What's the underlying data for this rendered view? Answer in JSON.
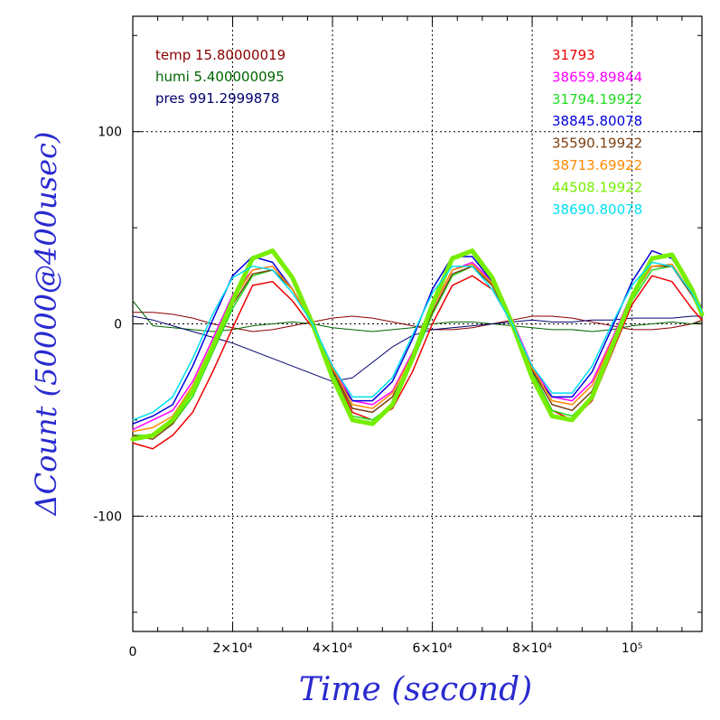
{
  "chart_data": {
    "type": "line",
    "xlabel": "Time (second)",
    "ylabel": "ΔCount (50000@400usec)",
    "xlim": [
      0,
      114000
    ],
    "ylim": [
      -160,
      160
    ],
    "grid": true,
    "x_ticks": [
      {
        "value": 0,
        "label": "0"
      },
      {
        "value": 20000,
        "label": "2×10⁴"
      },
      {
        "value": 40000,
        "label": "4×10⁴"
      },
      {
        "value": 60000,
        "label": "6×10⁴"
      },
      {
        "value": 80000,
        "label": "8×10⁴"
      },
      {
        "value": 100000,
        "label": "10⁵"
      }
    ],
    "y_ticks": [
      {
        "value": 100,
        "label": "100"
      },
      {
        "value": 0,
        "label": "0"
      },
      {
        "value": -100,
        "label": "-100"
      }
    ],
    "env_legend": [
      {
        "text": "temp 15.80000019",
        "color": "#8b0000"
      },
      {
        "text": "humi 5.400000095",
        "color": "#006400"
      },
      {
        "text": "pres 991.2999878",
        "color": "#00006e"
      }
    ],
    "series": [
      {
        "name": "31793",
        "color": "#ee0000",
        "width": 1.5,
        "amp": 24,
        "phase": 4200,
        "offset": -20,
        "start": -62,
        "x": [
          0,
          4000,
          8000,
          12000,
          16000,
          20000,
          24000,
          28000,
          32000,
          36000,
          40000,
          44000,
          48000,
          52000,
          56000,
          60000,
          64000,
          68000,
          72000,
          76000,
          80000,
          84000,
          88000,
          92000,
          96000,
          100000,
          104000,
          108000,
          112000,
          114000
        ],
        "y": [
          -62,
          -65,
          -58,
          -46,
          -25,
          -2,
          20,
          22,
          12,
          -2,
          -25,
          -46,
          -50,
          -44,
          -25,
          0,
          20,
          25,
          18,
          0,
          -25,
          -45,
          -50,
          -40,
          -15,
          10,
          25,
          22,
          8,
          2
        ]
      },
      {
        "name": "38659.89844",
        "color": "#ff00ff",
        "width": 1.5,
        "x": [
          0,
          4000,
          8000,
          12000,
          16000,
          20000,
          24000,
          28000,
          32000,
          36000,
          40000,
          44000,
          48000,
          52000,
          56000,
          60000,
          64000,
          68000,
          72000,
          76000,
          80000,
          84000,
          88000,
          92000,
          96000,
          100000,
          104000,
          108000,
          112000,
          114000
        ],
        "y": [
          -55,
          -50,
          -45,
          -30,
          -8,
          15,
          28,
          30,
          18,
          0,
          -22,
          -40,
          -42,
          -35,
          -15,
          8,
          28,
          32,
          22,
          2,
          -22,
          -38,
          -40,
          -30,
          -8,
          16,
          30,
          30,
          15,
          5
        ]
      },
      {
        "name": "31794.19922",
        "color": "#22dd22",
        "width": 1.5,
        "x": [
          0,
          4000,
          8000,
          12000,
          16000,
          20000,
          24000,
          28000,
          32000,
          36000,
          40000,
          44000,
          48000,
          52000,
          56000,
          60000,
          64000,
          68000,
          72000,
          76000,
          80000,
          84000,
          88000,
          92000,
          96000,
          100000,
          104000,
          108000,
          112000,
          114000
        ],
        "y": [
          -58,
          -58,
          -52,
          -38,
          -15,
          8,
          25,
          28,
          18,
          0,
          -25,
          -48,
          -50,
          -42,
          -20,
          5,
          25,
          30,
          20,
          0,
          -25,
          -45,
          -48,
          -38,
          -12,
          12,
          28,
          30,
          15,
          5
        ]
      },
      {
        "name": "38845.80078",
        "color": "#0000dd",
        "width": 1.5,
        "x": [
          0,
          4000,
          8000,
          12000,
          16000,
          20000,
          24000,
          28000,
          32000,
          36000,
          40000,
          44000,
          48000,
          52000,
          56000,
          60000,
          64000,
          68000,
          72000,
          76000,
          80000,
          84000,
          88000,
          92000,
          96000,
          100000,
          104000,
          108000,
          112000,
          114000
        ],
        "y": [
          -52,
          -48,
          -42,
          -22,
          2,
          25,
          35,
          32,
          18,
          0,
          -25,
          -40,
          -40,
          -30,
          -8,
          18,
          35,
          35,
          22,
          0,
          -25,
          -38,
          -38,
          -25,
          -2,
          22,
          38,
          34,
          18,
          8
        ]
      },
      {
        "name": "35590.19922",
        "color": "#7b3f10",
        "width": 1.5,
        "x": [
          0,
          4000,
          8000,
          12000,
          16000,
          20000,
          24000,
          28000,
          32000,
          36000,
          40000,
          44000,
          48000,
          52000,
          56000,
          60000,
          64000,
          68000,
          72000,
          76000,
          80000,
          84000,
          88000,
          92000,
          96000,
          100000,
          104000,
          108000,
          112000,
          114000
        ],
        "y": [
          -58,
          -60,
          -52,
          -36,
          -14,
          10,
          26,
          28,
          18,
          0,
          -24,
          -44,
          -46,
          -38,
          -18,
          6,
          26,
          30,
          20,
          0,
          -24,
          -42,
          -45,
          -35,
          -10,
          14,
          30,
          30,
          15,
          4
        ]
      },
      {
        "name": "38713.69922",
        "color": "#ff8a00",
        "width": 1.5,
        "x": [
          0,
          4000,
          8000,
          12000,
          16000,
          20000,
          24000,
          28000,
          32000,
          36000,
          40000,
          44000,
          48000,
          52000,
          56000,
          60000,
          64000,
          68000,
          72000,
          76000,
          80000,
          84000,
          88000,
          92000,
          96000,
          100000,
          104000,
          108000,
          112000,
          114000
        ],
        "y": [
          -56,
          -54,
          -48,
          -32,
          -10,
          12,
          28,
          30,
          18,
          0,
          -23,
          -42,
          -44,
          -36,
          -16,
          8,
          28,
          31,
          21,
          1,
          -23,
          -40,
          -42,
          -32,
          -9,
          15,
          30,
          31,
          16,
          5
        ]
      },
      {
        "name": "44508.19922",
        "color": "#77ee00",
        "width": 5,
        "x": [
          0,
          4000,
          8000,
          12000,
          16000,
          20000,
          24000,
          28000,
          32000,
          36000,
          40000,
          44000,
          48000,
          52000,
          56000,
          60000,
          64000,
          68000,
          72000,
          76000,
          80000,
          84000,
          88000,
          92000,
          96000,
          100000,
          104000,
          108000,
          112000,
          114000
        ],
        "y": [
          -60,
          -58,
          -50,
          -35,
          -12,
          12,
          34,
          38,
          24,
          0,
          -28,
          -50,
          -52,
          -42,
          -18,
          10,
          34,
          38,
          24,
          0,
          -28,
          -48,
          -50,
          -38,
          -12,
          14,
          34,
          36,
          18,
          5
        ]
      },
      {
        "name": "38690.80078",
        "color": "#00e0f0",
        "width": 1.5,
        "x": [
          0,
          4000,
          8000,
          12000,
          16000,
          20000,
          24000,
          28000,
          32000,
          36000,
          40000,
          44000,
          48000,
          52000,
          56000,
          60000,
          64000,
          68000,
          72000,
          76000,
          80000,
          84000,
          88000,
          92000,
          96000,
          100000,
          104000,
          108000,
          112000,
          114000
        ],
        "y": [
          -50,
          -46,
          -38,
          -18,
          5,
          24,
          30,
          28,
          16,
          0,
          -22,
          -38,
          -38,
          -28,
          -6,
          16,
          30,
          30,
          18,
          0,
          -22,
          -36,
          -36,
          -22,
          0,
          20,
          32,
          30,
          16,
          6
        ]
      }
    ],
    "env_series": [
      {
        "label": "temp",
        "color": "#8b0000",
        "width": 1,
        "x": [
          0,
          4000,
          8000,
          12000,
          16000,
          20000,
          24000,
          28000,
          32000,
          36000,
          40000,
          44000,
          48000,
          52000,
          56000,
          60000,
          64000,
          68000,
          72000,
          76000,
          80000,
          84000,
          88000,
          92000,
          96000,
          100000,
          104000,
          108000,
          112000,
          114000
        ],
        "y": [
          6,
          6,
          5,
          3,
          0,
          -2,
          -4,
          -3,
          -1,
          1,
          3,
          4,
          3,
          1,
          -1,
          -3,
          -3,
          -2,
          0,
          2,
          4,
          4,
          3,
          1,
          -1,
          -3,
          -3,
          -2,
          0,
          2
        ]
      },
      {
        "label": "humi",
        "color": "#006400",
        "width": 1,
        "x": [
          0,
          4000,
          8000,
          12000,
          16000,
          20000,
          24000,
          28000,
          32000,
          36000,
          40000,
          44000,
          48000,
          52000,
          56000,
          60000,
          64000,
          68000,
          72000,
          76000,
          80000,
          84000,
          88000,
          92000,
          96000,
          100000,
          104000,
          108000,
          112000,
          114000
        ],
        "y": [
          12,
          -1,
          -2,
          -3,
          -4,
          -3,
          -1,
          0,
          1,
          0,
          -2,
          -3,
          -4,
          -3,
          -2,
          0,
          1,
          1,
          0,
          -1,
          -2,
          -3,
          -3,
          -4,
          -3,
          -1,
          0,
          1,
          0,
          1
        ]
      },
      {
        "label": "pres",
        "color": "#00006e",
        "width": 1,
        "x": [
          0,
          4000,
          8000,
          12000,
          16000,
          20000,
          24000,
          28000,
          32000,
          36000,
          40000,
          44000,
          48000,
          52000,
          56000,
          60000,
          64000,
          68000,
          72000,
          76000,
          80000,
          84000,
          88000,
          92000,
          96000,
          100000,
          104000,
          108000,
          112000,
          114000
        ],
        "y": [
          4,
          2,
          -1,
          -4,
          -7,
          -10,
          -14,
          -18,
          -22,
          -26,
          -30,
          -28,
          -20,
          -12,
          -6,
          -3,
          -2,
          -1,
          0,
          1,
          2,
          1,
          1,
          2,
          2,
          3,
          3,
          3,
          4,
          4
        ]
      }
    ]
  }
}
